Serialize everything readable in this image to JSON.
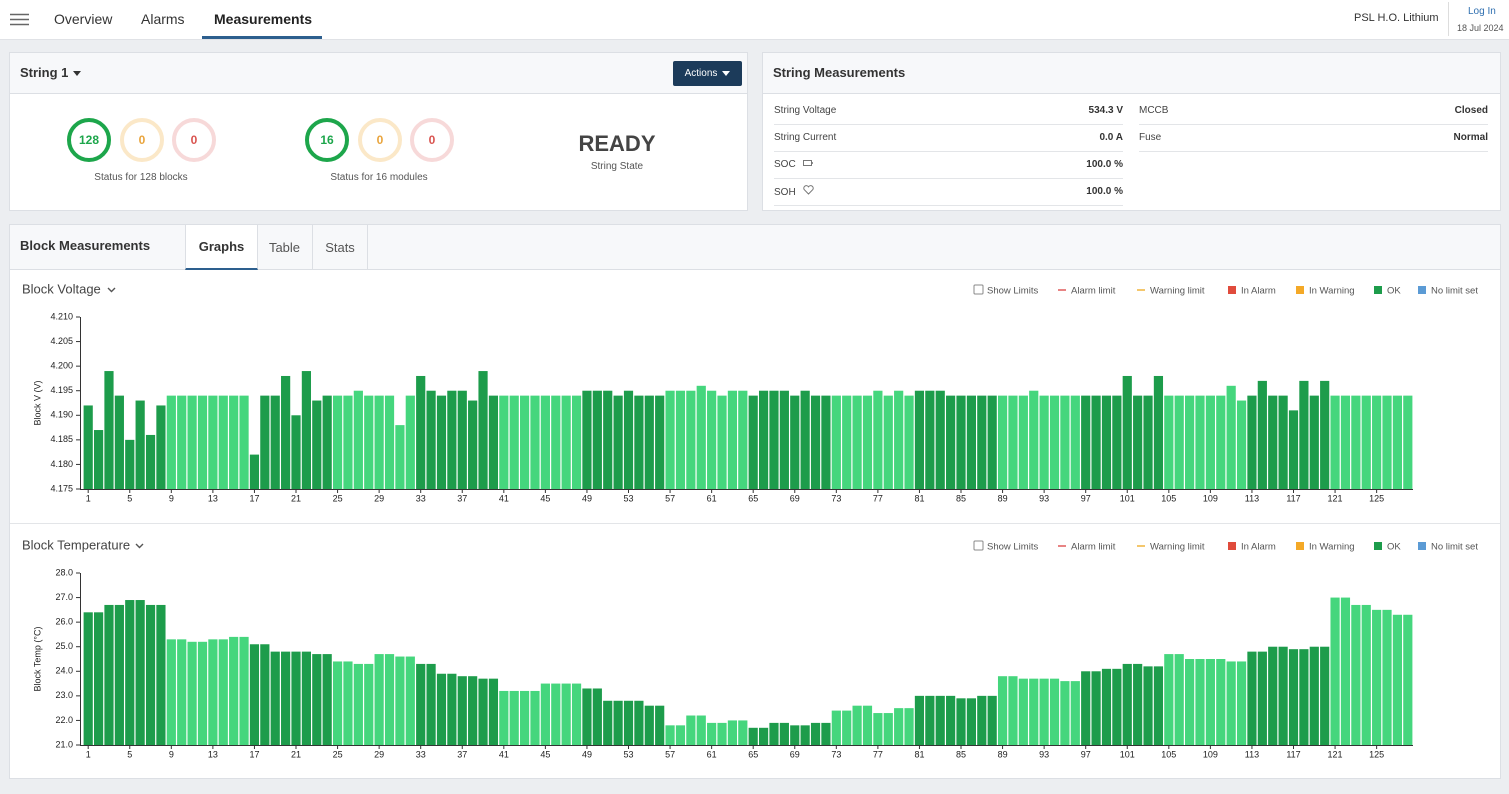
{
  "nav": {
    "items": [
      "Overview",
      "Alarms",
      "Measurements"
    ],
    "org": "PSL H.O. Lithium",
    "login": "Log In",
    "date": "18 Jul 2024"
  },
  "string_panel": {
    "title": "String 1",
    "action": "Actions",
    "blocks": {
      "counts": [
        128,
        0,
        0
      ],
      "caption": "Status for 128 blocks"
    },
    "modules": {
      "counts": [
        16,
        0,
        0
      ],
      "caption": "Status for 16 modules"
    },
    "state": "READY",
    "state_label": "String State"
  },
  "measurements_panel": {
    "title": "String Measurements",
    "left": [
      [
        "String Voltage",
        "534.3 V"
      ],
      [
        "String Current",
        "0.0 A"
      ],
      [
        "SOC",
        "100.0 %"
      ],
      [
        "SOH",
        "100.0 %"
      ]
    ],
    "right": [
      [
        "MCCB",
        "Closed"
      ],
      [
        "Fuse",
        "Normal"
      ]
    ]
  },
  "block_panel": {
    "title": "Block Measurements",
    "tabs": [
      "Graphs",
      "Table",
      "Stats"
    ]
  },
  "chart_data": [
    {
      "type": "bar",
      "title": "Block Voltage",
      "ylabel": "Block V (V)",
      "show_limits": "Show Limits",
      "legend": [
        {
          "name": "Alarm limit",
          "color": "#e05a5a",
          "marker": "line"
        },
        {
          "name": "Warning limit",
          "color": "#f0b43c",
          "marker": "line"
        },
        {
          "name": "In Alarm",
          "color": "#e04b3c",
          "marker": "square"
        },
        {
          "name": "In Warning",
          "color": "#f4a927",
          "marker": "square"
        },
        {
          "name": "OK",
          "color": "#1d9c4b",
          "marker": "square"
        },
        {
          "name": "No limit set",
          "color": "#5b9bd5",
          "marker": "square"
        }
      ],
      "categories": [
        1,
        null,
        null,
        null,
        5,
        null,
        null,
        null,
        9,
        null,
        null,
        null,
        13,
        null,
        null,
        null,
        17,
        null,
        null,
        null,
        21,
        null,
        null,
        null,
        25,
        null,
        null,
        null,
        29,
        null,
        null,
        null,
        33,
        null,
        null,
        null,
        37,
        null,
        null,
        null,
        41,
        null,
        null,
        null,
        45,
        null,
        null,
        null,
        49,
        null,
        null,
        null,
        53,
        null,
        null,
        null,
        57,
        null,
        null,
        null,
        61,
        null,
        null,
        null,
        65,
        null,
        null,
        null,
        69,
        null,
        null,
        null,
        73,
        null,
        null,
        null,
        77,
        null,
        null,
        null,
        81,
        null,
        null,
        null,
        85,
        null,
        null,
        null,
        89,
        null,
        null,
        null,
        93,
        null,
        null,
        null,
        97,
        null,
        null,
        null,
        101,
        null,
        null,
        null,
        105,
        null,
        null,
        null,
        109,
        null,
        null,
        null,
        113,
        null,
        null,
        null,
        117,
        null,
        null,
        null,
        121,
        null,
        null,
        null,
        125,
        null,
        null,
        null
      ],
      "values": [
        4.192,
        4.187,
        4.199,
        4.194,
        4.185,
        4.193,
        4.186,
        4.192,
        4.194,
        4.194,
        4.194,
        4.194,
        4.194,
        4.194,
        4.194,
        4.194,
        4.182,
        4.194,
        4.194,
        4.198,
        4.19,
        4.199,
        4.193,
        4.194,
        4.194,
        4.194,
        4.195,
        4.194,
        4.194,
        4.194,
        4.188,
        4.194,
        4.198,
        4.195,
        4.194,
        4.195,
        4.195,
        4.193,
        4.199,
        4.194,
        4.194,
        4.194,
        4.194,
        4.194,
        4.194,
        4.194,
        4.194,
        4.194,
        4.195,
        4.195,
        4.195,
        4.194,
        4.195,
        4.194,
        4.194,
        4.194,
        4.195,
        4.195,
        4.195,
        4.196,
        4.195,
        4.194,
        4.195,
        4.195,
        4.194,
        4.195,
        4.195,
        4.195,
        4.194,
        4.195,
        4.194,
        4.194,
        4.194,
        4.194,
        4.194,
        4.194,
        4.195,
        4.194,
        4.195,
        4.194,
        4.195,
        4.195,
        4.195,
        4.194,
        4.194,
        4.194,
        4.194,
        4.194,
        4.194,
        4.194,
        4.194,
        4.195,
        4.194,
        4.194,
        4.194,
        4.194,
        4.194,
        4.194,
        4.194,
        4.194,
        4.198,
        4.194,
        4.194,
        4.198,
        4.194,
        4.194,
        4.194,
        4.194,
        4.194,
        4.194,
        4.196,
        4.193,
        4.194,
        4.197,
        4.194,
        4.194,
        4.191,
        4.197,
        4.194,
        4.197,
        4.194,
        4.194,
        4.194,
        4.194,
        4.194,
        4.194,
        4.194,
        4.194
      ],
      "module_colors": [
        "#1d9c4b",
        "#45d67d",
        "#1d9c4b",
        "#45d67d",
        "#1d9c4b",
        "#45d67d",
        "#1d9c4b",
        "#45d67d",
        "#1d9c4b",
        "#45d67d",
        "#1d9c4b",
        "#45d67d",
        "#1d9c4b",
        "#45d67d",
        "#1d9c4b",
        "#45d67d"
      ],
      "ylim": [
        4.175,
        4.21
      ],
      "yticks": [
        4.175,
        {
          "value": 4.18,
          "label": "4.180"
        },
        4.185,
        {
          "value": 4.19,
          "label": "4.190"
        },
        4.195,
        {
          "value": 4.2,
          "label": "4.200"
        },
        4.205,
        {
          "value": 4.21,
          "label": "4.210"
        }
      ]
    },
    {
      "type": "bar",
      "title": "Block Temperature",
      "ylabel": "Block Temp (°C)",
      "show_limits": "Show Limits",
      "legend": [
        {
          "name": "Alarm limit",
          "color": "#e05a5a",
          "marker": "line"
        },
        {
          "name": "Warning limit",
          "color": "#f0b43c",
          "marker": "line"
        },
        {
          "name": "In Alarm",
          "color": "#e04b3c",
          "marker": "square"
        },
        {
          "name": "In Warning",
          "color": "#f4a927",
          "marker": "square"
        },
        {
          "name": "OK",
          "color": "#1d9c4b",
          "marker": "square"
        },
        {
          "name": "No limit set",
          "color": "#5b9bd5",
          "marker": "square"
        }
      ],
      "categories": [
        1,
        null,
        null,
        null,
        5,
        null,
        null,
        null,
        9,
        null,
        null,
        null,
        13,
        null,
        null,
        null,
        17,
        null,
        null,
        null,
        21,
        null,
        null,
        null,
        25,
        null,
        null,
        null,
        29,
        null,
        null,
        null,
        33,
        null,
        null,
        null,
        37,
        null,
        null,
        null,
        41,
        null,
        null,
        null,
        45,
        null,
        null,
        null,
        49,
        null,
        null,
        null,
        53,
        null,
        null,
        null,
        57,
        null,
        null,
        null,
        61,
        null,
        null,
        null,
        65,
        null,
        null,
        null,
        69,
        null,
        null,
        null,
        73,
        null,
        null,
        null,
        77,
        null,
        null,
        null,
        81,
        null,
        null,
        null,
        85,
        null,
        null,
        null,
        89,
        null,
        null,
        null,
        93,
        null,
        null,
        null,
        97,
        null,
        null,
        null,
        101,
        null,
        null,
        null,
        105,
        null,
        null,
        null,
        109,
        null,
        null,
        null,
        113,
        null,
        null,
        null,
        117,
        null,
        null,
        null,
        121,
        null,
        null,
        null,
        125,
        null,
        null,
        null
      ],
      "values": [
        26.4,
        26.4,
        26.7,
        26.7,
        26.9,
        26.9,
        26.7,
        26.7,
        25.3,
        25.3,
        25.2,
        25.2,
        25.3,
        25.3,
        25.4,
        25.4,
        25.1,
        25.1,
        24.8,
        24.8,
        24.8,
        24.8,
        24.7,
        24.7,
        24.4,
        24.4,
        24.3,
        24.3,
        24.7,
        24.7,
        24.6,
        24.6,
        24.3,
        24.3,
        23.9,
        23.9,
        23.8,
        23.8,
        23.7,
        23.7,
        23.2,
        23.2,
        23.2,
        23.2,
        23.5,
        23.5,
        23.5,
        23.5,
        23.3,
        23.3,
        22.8,
        22.8,
        22.8,
        22.8,
        22.6,
        22.6,
        21.8,
        21.8,
        22.2,
        22.2,
        21.9,
        21.9,
        22.0,
        22.0,
        21.7,
        21.7,
        21.9,
        21.9,
        21.8,
        21.8,
        21.9,
        21.9,
        22.4,
        22.4,
        22.6,
        22.6,
        22.3,
        22.3,
        22.5,
        22.5,
        23.0,
        23.0,
        23.0,
        23.0,
        22.9,
        22.9,
        23.0,
        23.0,
        23.8,
        23.8,
        23.7,
        23.7,
        23.7,
        23.7,
        23.6,
        23.6,
        24.0,
        24.0,
        24.1,
        24.1,
        24.3,
        24.3,
        24.2,
        24.2,
        24.7,
        24.7,
        24.5,
        24.5,
        24.5,
        24.5,
        24.4,
        24.4,
        24.8,
        24.8,
        25.0,
        25.0,
        24.9,
        24.9,
        25.0,
        25.0,
        27.0,
        27.0,
        26.7,
        26.7,
        26.5,
        26.5,
        26.3,
        26.3
      ],
      "module_colors": [
        "#1d9c4b",
        "#45d67d",
        "#1d9c4b",
        "#45d67d",
        "#1d9c4b",
        "#45d67d",
        "#1d9c4b",
        "#45d67d",
        "#1d9c4b",
        "#45d67d",
        "#1d9c4b",
        "#45d67d",
        "#1d9c4b",
        "#45d67d",
        "#1d9c4b",
        "#45d67d"
      ],
      "ylim": [
        21,
        28
      ],
      "yticks": [
        {
          "value": 21,
          "label": "21.0"
        },
        {
          "value": 22,
          "label": "22.0"
        },
        {
          "value": 23,
          "label": "23.0"
        },
        {
          "value": 24,
          "label": "24.0"
        },
        {
          "value": 25,
          "label": "25.0"
        },
        {
          "value": 26,
          "label": "26.0"
        },
        {
          "value": 27,
          "label": "27.0"
        },
        {
          "value": 28,
          "label": "28.0"
        }
      ]
    }
  ]
}
